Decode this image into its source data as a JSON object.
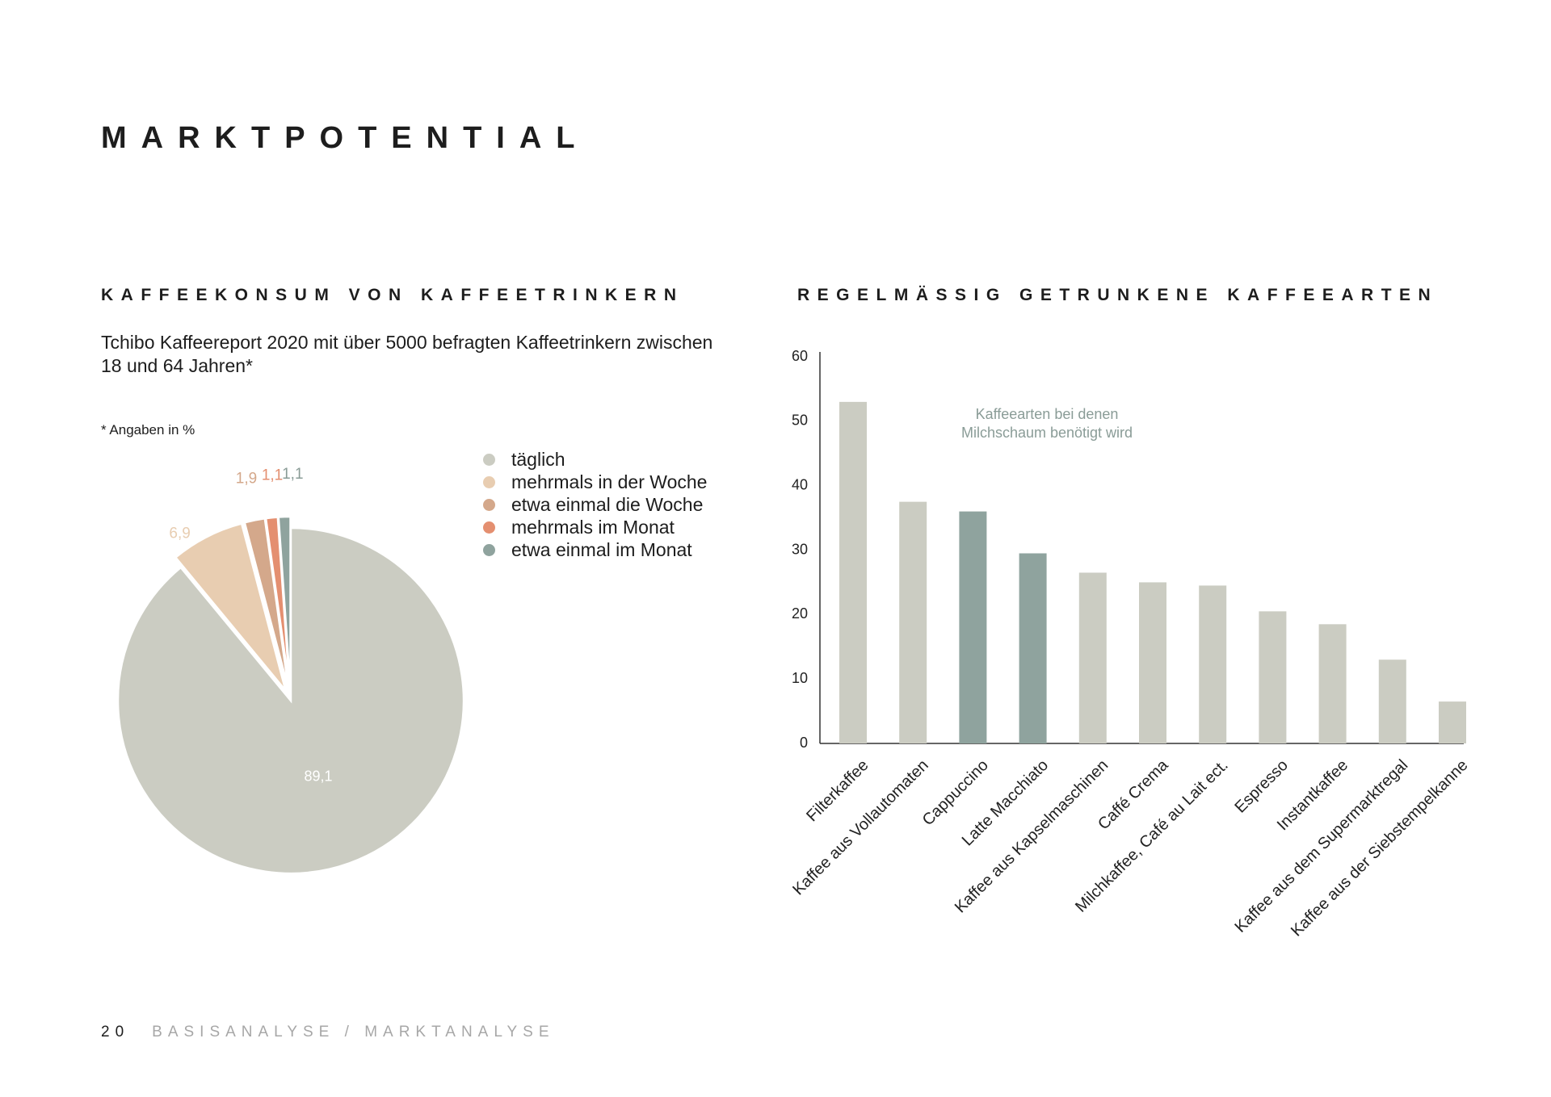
{
  "page": {
    "title": "MARKTPOTENTIAL",
    "footer": {
      "page_number": "20",
      "breadcrumb": "BASISANALYSE / MARKTANALYSE"
    }
  },
  "left": {
    "heading": "KAFFEEKONSUM VON KAFFEETRINKERN",
    "intro": "Tchibo Kaffeereport 2020 mit über 5000 befragten Kaffeetrinkern zwischen 18 und 64 Jahren*",
    "note": "* Angaben in %"
  },
  "right": {
    "heading": "REGELMÄSSIG GETRUNKENE KAFFEEARTEN"
  },
  "chart_data": [
    {
      "type": "pie",
      "title": "",
      "slices": [
        {
          "label": "täglich",
          "value": 89.1,
          "value_label": "89,1",
          "color": "#cbccc2"
        },
        {
          "label": "mehrmals in der Woche",
          "value": 6.9,
          "value_label": "6,9",
          "color": "#e8cdb1"
        },
        {
          "label": "etwa einmal die Woche",
          "value": 1.9,
          "value_label": "1,9",
          "color": "#d4a88b"
        },
        {
          "label": "mehrmals im Monat",
          "value": 1.1,
          "value_label": "1,1",
          "color": "#e48f70"
        },
        {
          "label": "etwa einmal im Monat",
          "value": 1.1,
          "value_label": "1,1",
          "color": "#8fa39e"
        }
      ],
      "legend_position": "right"
    },
    {
      "type": "bar",
      "title": "",
      "categories": [
        "Filterkaffee",
        "Kaffee aus Vollautomaten",
        "Cappuccino",
        "Latte Macchiato",
        "Kaffee aus Kapselmaschinen",
        "Caffé Crema",
        "Milchkaffee, Café au Lait ect.",
        "Espresso",
        "Instantkaffee",
        "Kaffee aus dem Supermarktregal",
        "Kaffee aus der Siebstempelkanne"
      ],
      "values": [
        53,
        37.5,
        36,
        29.5,
        26.5,
        25,
        24.5,
        20.5,
        18.5,
        13,
        6.5
      ],
      "highlighted": [
        false,
        false,
        true,
        true,
        false,
        false,
        false,
        false,
        false,
        false,
        false
      ],
      "colors": {
        "default": "#cbccc2",
        "highlight": "#8fa39e"
      },
      "annotation": "Kaffeearten bei denen Milchschaum benötigt wird",
      "xlabel": "",
      "ylabel": "",
      "ylim": [
        0,
        60
      ],
      "yticks": [
        0,
        10,
        20,
        30,
        40,
        50,
        60
      ],
      "grid": false
    }
  ]
}
